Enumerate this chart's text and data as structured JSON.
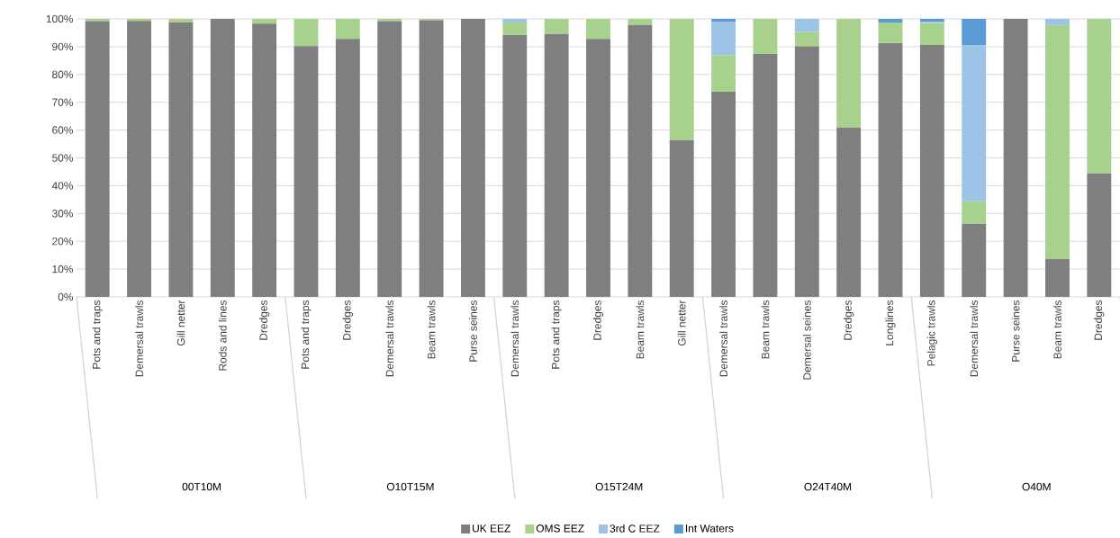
{
  "chart_data": {
    "type": "bar",
    "stacked": true,
    "categories": [
      "Pots and traps",
      "Demersal trawls",
      "Gill netter",
      "Rods and lines",
      "Dredges",
      "Pots and traps",
      "Dredges",
      "Demersal trawls",
      "Beam trawls",
      "Purse seines",
      "Demersal trawls",
      "Pots and traps",
      "Dredges",
      "Beam trawls",
      "Gill netter",
      "Demersal trawls",
      "Beam trawls",
      "Demersal seines",
      "Dredges",
      "Longlines",
      "Pelagic trawls",
      "Demersal trawls",
      "Purse seines",
      "Beam trawls",
      "Dredges"
    ],
    "series": [
      {
        "name": "UK EEZ",
        "color": "#7f7f7f",
        "values": [
          99.2,
          99.3,
          98.8,
          100,
          98.3,
          90.2,
          92.8,
          99.2,
          99.5,
          100,
          94.2,
          94.6,
          92.8,
          97.8,
          56.4,
          73.8,
          87.4,
          90.1,
          60.9,
          91.3,
          90.6,
          26.3,
          100,
          13.7,
          44.4
        ]
      },
      {
        "name": "OMS EEZ",
        "color": "#a9d18e",
        "values": [
          0.8,
          0.7,
          1.2,
          0,
          1.7,
          9.8,
          7.2,
          0.8,
          0.5,
          0,
          4.5,
          5.4,
          7.2,
          2.2,
          43.6,
          13.1,
          12.6,
          5.2,
          39.1,
          7.4,
          7.9,
          8.1,
          0,
          84.1,
          55.6
        ]
      },
      {
        "name": "3rd C EEZ",
        "color": "#9dc3e6",
        "values": [
          0,
          0,
          0,
          0,
          0,
          0,
          0,
          0,
          0,
          0,
          1.3,
          0,
          0,
          0,
          0,
          12.1,
          0,
          4.7,
          0,
          0,
          0.5,
          56.1,
          0,
          2.2,
          0
        ]
      },
      {
        "name": "Int Waters",
        "color": "#5b9bd5",
        "values": [
          0,
          0,
          0,
          0,
          0,
          0,
          0,
          0,
          0,
          0,
          0,
          0,
          0,
          0,
          0,
          1.0,
          0,
          0,
          0,
          1.3,
          1.0,
          9.5,
          0,
          0,
          0
        ]
      }
    ],
    "annotations": [
      "00T10M",
      "O10T15M",
      "O15T24M",
      "O24T40M",
      "O40M"
    ],
    "ylim": [
      0,
      100
    ],
    "yticks": [
      {
        "value": 0,
        "label": "0%"
      },
      {
        "value": 10,
        "label": "10%"
      },
      {
        "value": 20,
        "label": "20%"
      },
      {
        "value": 30,
        "label": "30%"
      },
      {
        "value": 40,
        "label": "40%"
      },
      {
        "value": 50,
        "label": "50%"
      },
      {
        "value": 60,
        "label": "60%"
      },
      {
        "value": 70,
        "label": "70%"
      },
      {
        "value": 80,
        "label": "80%"
      },
      {
        "value": 90,
        "label": "90%"
      },
      {
        "value": 100,
        "label": "100%"
      }
    ],
    "grid": "y",
    "legend": "bottom"
  }
}
